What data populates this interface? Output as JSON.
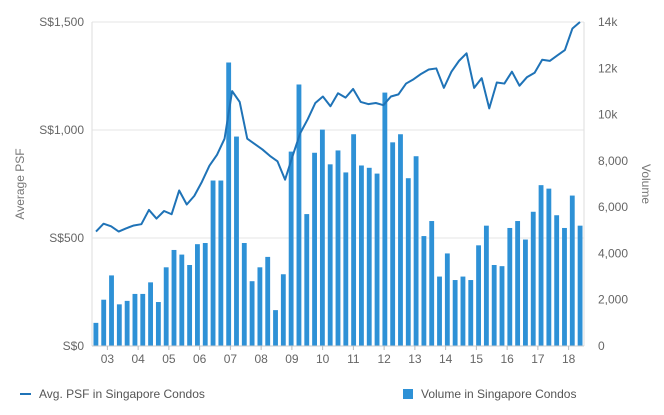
{
  "chart_data": {
    "type": "bar",
    "x_tick_labels": [
      "03",
      "04",
      "05",
      "06",
      "07",
      "08",
      "09",
      "10",
      "11",
      "12",
      "13",
      "14",
      "15",
      "16",
      "17",
      "18"
    ],
    "y_left_label": "Average PSF",
    "y_left_range": [
      0,
      1500
    ],
    "y_left_ticks": [
      {
        "value": 0,
        "label": "S$0"
      },
      {
        "value": 500,
        "label": "S$500"
      },
      {
        "value": 1000,
        "label": "S$1,000"
      },
      {
        "value": 1500,
        "label": "S$1,500"
      }
    ],
    "y_right_label": "Volume",
    "y_right_range": [
      0,
      14000
    ],
    "y_right_ticks": [
      {
        "value": 0,
        "label": "0"
      },
      {
        "value": 2000,
        "label": "2,000"
      },
      {
        "value": 4000,
        "label": "4,000"
      },
      {
        "value": 6000,
        "label": "6,000"
      },
      {
        "value": 8000,
        "label": "8,000"
      },
      {
        "value": 10000,
        "label": "10k"
      },
      {
        "value": 12000,
        "label": "12k"
      },
      {
        "value": 14000,
        "label": "14k"
      }
    ],
    "grid": "horizontal",
    "legend_position": "bottom",
    "colors": {
      "line": "#1f73b7",
      "bars": "#2e91d6"
    },
    "series": [
      {
        "name": "Avg. PSF in Singapore Condos",
        "type": "line",
        "axis": "left",
        "values": [
          530,
          566,
          554,
          530,
          545,
          558,
          564,
          630,
          590,
          625,
          610,
          720,
          655,
          695,
          760,
          835,
          885,
          960,
          1180,
          1130,
          960,
          935,
          910,
          880,
          855,
          770,
          880,
          985,
          1050,
          1125,
          1155,
          1110,
          1170,
          1150,
          1190,
          1130,
          1120,
          1125,
          1115,
          1155,
          1165,
          1215,
          1235,
          1260,
          1280,
          1285,
          1195,
          1270,
          1320,
          1355,
          1195,
          1240,
          1100,
          1220,
          1215,
          1270,
          1205,
          1245,
          1265,
          1325,
          1320,
          1345,
          1370,
          1470,
          1500
        ]
      },
      {
        "name": "Volume in Singapore Condos",
        "type": "bar",
        "axis": "right",
        "values": [
          1000,
          2000,
          3050,
          1800,
          1950,
          2250,
          2250,
          2750,
          1900,
          3400,
          4150,
          3950,
          3500,
          4400,
          4450,
          7150,
          7150,
          12250,
          9050,
          4450,
          2800,
          3400,
          3850,
          1550,
          3100,
          8400,
          11300,
          5700,
          8350,
          9350,
          7850,
          8450,
          7500,
          9150,
          7800,
          7700,
          7450,
          10950,
          8800,
          9150,
          7250,
          8200,
          4750,
          5400,
          3000,
          4000,
          2850,
          3000,
          2850,
          4350,
          5200,
          3500,
          3450,
          5100,
          5400,
          4600,
          5800,
          6950,
          6800,
          5650,
          5100,
          6500,
          5200
        ]
      }
    ]
  }
}
